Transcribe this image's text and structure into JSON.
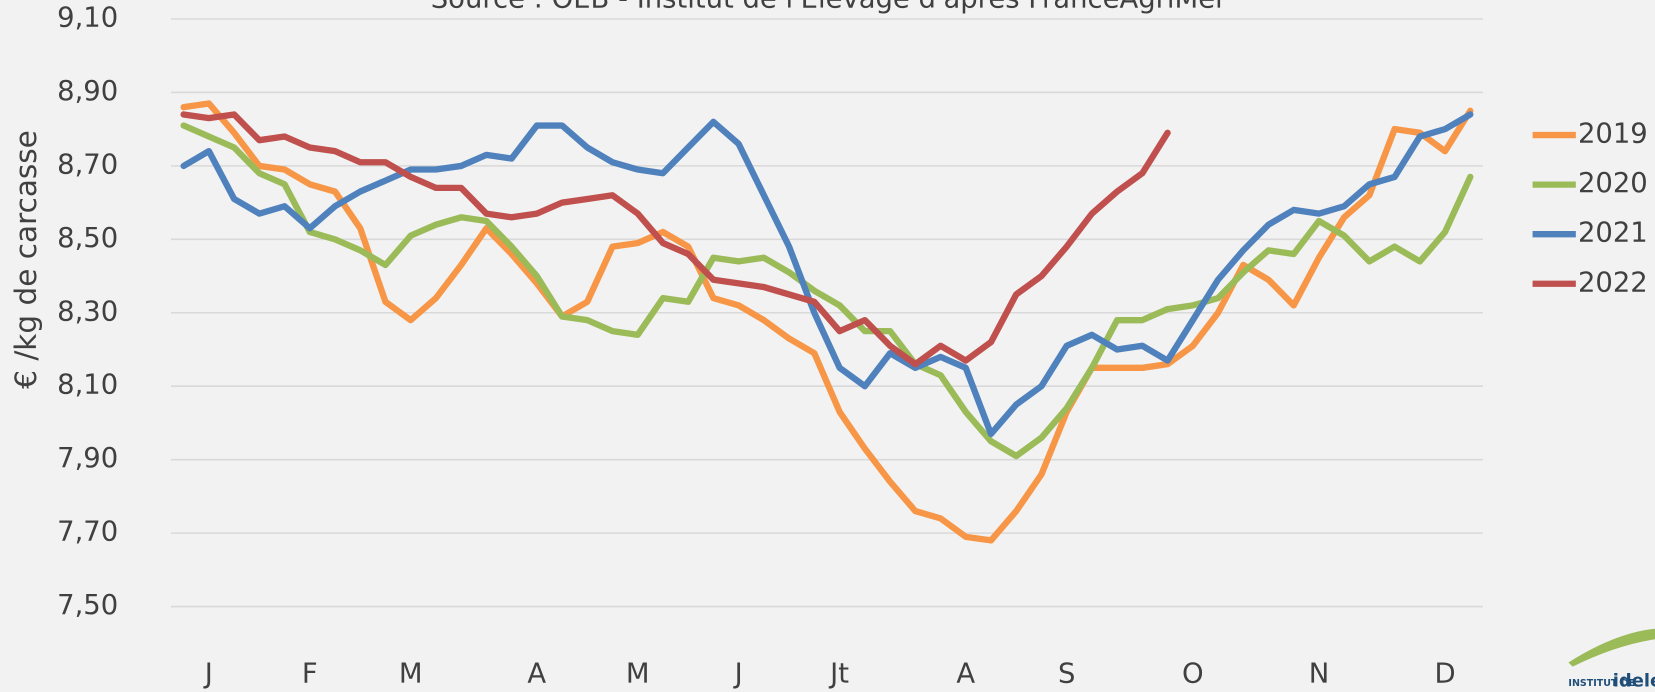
{
  "chart_data": {
    "type": "line",
    "title": "Source : OEB - Institut de l'Elevage d'après FranceAgriMer",
    "y_label": "€ /kg de carcasse",
    "x": [
      1,
      2,
      3,
      4,
      5,
      6,
      7,
      8,
      9,
      10,
      11,
      12,
      13,
      14,
      15,
      16,
      17,
      18,
      19,
      20,
      21,
      22,
      23,
      24,
      25,
      26,
      27,
      28,
      29,
      30,
      31,
      32,
      33,
      34,
      35,
      36,
      37,
      38,
      39,
      40,
      41,
      42,
      43,
      44,
      45,
      46,
      47,
      48,
      49,
      50,
      51,
      52
    ],
    "xlim": [
      0.5,
      52.5
    ],
    "xticks": [
      {
        "value": 2,
        "label": "J"
      },
      {
        "value": 6,
        "label": "F"
      },
      {
        "value": 10,
        "label": "M"
      },
      {
        "value": 15,
        "label": "A"
      },
      {
        "value": 19,
        "label": "M"
      },
      {
        "value": 23,
        "label": "J"
      },
      {
        "value": 27,
        "label": "Jt"
      },
      {
        "value": 32,
        "label": "A"
      },
      {
        "value": 36,
        "label": "S"
      },
      {
        "value": 41,
        "label": "O"
      },
      {
        "value": 46,
        "label": "N"
      },
      {
        "value": 51,
        "label": "D"
      }
    ],
    "ylim": [
      7.5,
      9.1
    ],
    "yticks": [
      {
        "value": 7.5,
        "label": "7,50"
      },
      {
        "value": 7.7,
        "label": "7,70"
      },
      {
        "value": 7.9,
        "label": "7,90"
      },
      {
        "value": 8.1,
        "label": "8,10"
      },
      {
        "value": 8.3,
        "label": "8,30"
      },
      {
        "value": 8.5,
        "label": "8,50"
      },
      {
        "value": 8.7,
        "label": "8,70"
      },
      {
        "value": 8.9,
        "label": "8,90"
      },
      {
        "value": 9.1,
        "label": "9,10"
      }
    ],
    "grid": true,
    "legend": "right",
    "series": [
      {
        "name": "2019",
        "color": "#f79646",
        "values": [
          8.86,
          8.87,
          8.79,
          8.7,
          8.69,
          8.65,
          8.63,
          8.53,
          8.33,
          8.28,
          8.34,
          8.43,
          8.53,
          8.46,
          8.38,
          8.29,
          8.33,
          8.48,
          8.49,
          8.52,
          8.48,
          8.34,
          8.32,
          8.28,
          8.23,
          8.19,
          8.03,
          7.93,
          7.84,
          7.76,
          7.74,
          7.69,
          7.68,
          7.76,
          7.86,
          8.03,
          8.15,
          8.15,
          8.15,
          8.16,
          8.21,
          8.3,
          8.43,
          8.39,
          8.32,
          8.45,
          8.56,
          8.62,
          8.8,
          8.79,
          8.74,
          8.85
        ]
      },
      {
        "name": "2020",
        "color": "#9bbb59",
        "values": [
          8.81,
          8.78,
          8.75,
          8.68,
          8.65,
          8.52,
          8.5,
          8.47,
          8.43,
          8.51,
          8.54,
          8.56,
          8.55,
          8.48,
          8.4,
          8.29,
          8.28,
          8.25,
          8.24,
          8.34,
          8.33,
          8.45,
          8.44,
          8.45,
          8.41,
          8.36,
          8.32,
          8.25,
          8.25,
          8.16,
          8.13,
          8.03,
          7.95,
          7.91,
          7.96,
          8.04,
          8.15,
          8.28,
          8.28,
          8.31,
          8.32,
          8.34,
          8.41,
          8.47,
          8.46,
          8.55,
          8.51,
          8.44,
          8.48,
          8.44,
          8.52,
          8.67
        ]
      },
      {
        "name": "2021",
        "color": "#4f81bd",
        "values": [
          8.7,
          8.74,
          8.61,
          8.57,
          8.59,
          8.53,
          8.59,
          8.63,
          8.66,
          8.69,
          8.69,
          8.7,
          8.73,
          8.72,
          8.81,
          8.81,
          8.75,
          8.71,
          8.69,
          8.68,
          8.75,
          8.82,
          8.76,
          8.62,
          8.48,
          8.3,
          8.15,
          8.1,
          8.19,
          8.15,
          8.18,
          8.15,
          7.97,
          8.05,
          8.1,
          8.21,
          8.24,
          8.2,
          8.21,
          8.17,
          8.28,
          8.39,
          8.47,
          8.54,
          8.58,
          8.57,
          8.59,
          8.65,
          8.67,
          8.78,
          8.8,
          8.84
        ]
      },
      {
        "name": "2022",
        "color": "#c0504d",
        "values": [
          8.84,
          8.83,
          8.84,
          8.77,
          8.78,
          8.75,
          8.74,
          8.71,
          8.71,
          8.67,
          8.64,
          8.64,
          8.57,
          8.56,
          8.57,
          8.6,
          8.61,
          8.62,
          8.57,
          8.49,
          8.46,
          8.39,
          8.38,
          8.37,
          8.35,
          8.33,
          8.25,
          8.28,
          8.21,
          8.16,
          8.21,
          8.17,
          8.22,
          8.35,
          8.4,
          8.48,
          8.57,
          8.63,
          8.68,
          8.79,
          null,
          null,
          null,
          null,
          null,
          null,
          null,
          null,
          null,
          null,
          null,
          null
        ]
      }
    ]
  },
  "logo": {
    "line1": "INSTITUT DE",
    "brand": "idele"
  }
}
